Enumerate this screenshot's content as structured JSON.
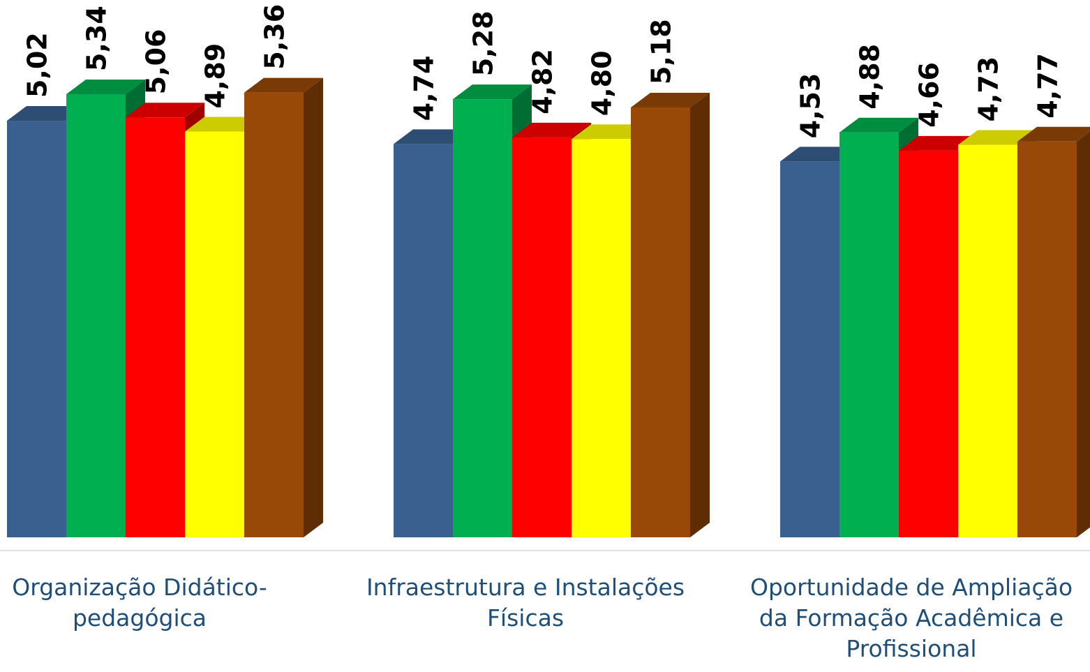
{
  "chart_data": {
    "type": "bar",
    "categories": [
      "Organização Didático-pedagógica",
      "Infraestrutura e Instalações Físicas",
      "Oportunidade de Ampliação da Formação Acadêmica e Profissional"
    ],
    "category_label_lines": [
      [
        "Organização Didático-",
        "pedagógica"
      ],
      [
        "Infraestrutura e Instalações",
        "Físicas"
      ],
      [
        "Oportunidade de Ampliação",
        "da Formação Acadêmica e",
        "Profissional"
      ]
    ],
    "series": [
      {
        "values": [
          5.02,
          4.74,
          4.53
        ],
        "labels": [
          "5,02",
          "4,74",
          "4,53"
        ],
        "color": "#3a6090"
      },
      {
        "values": [
          5.34,
          5.28,
          4.88
        ],
        "labels": [
          "5,34",
          "5,28",
          "4,88"
        ],
        "color": "#00b050"
      },
      {
        "values": [
          5.06,
          4.82,
          4.66
        ],
        "labels": [
          "5,06",
          "4,82",
          "4,66"
        ],
        "color": "#ff0000"
      },
      {
        "values": [
          4.89,
          4.8,
          4.73
        ],
        "labels": [
          "4,89",
          "4,80",
          "4,73"
        ],
        "color": "#ffff00"
      },
      {
        "values": [
          5.36,
          5.18,
          4.77
        ],
        "labels": [
          "5,36",
          "5,18",
          "4,77"
        ],
        "color": "#984807"
      }
    ],
    "grid": false,
    "legend": "none",
    "data_labels": "rotated-vertical"
  }
}
